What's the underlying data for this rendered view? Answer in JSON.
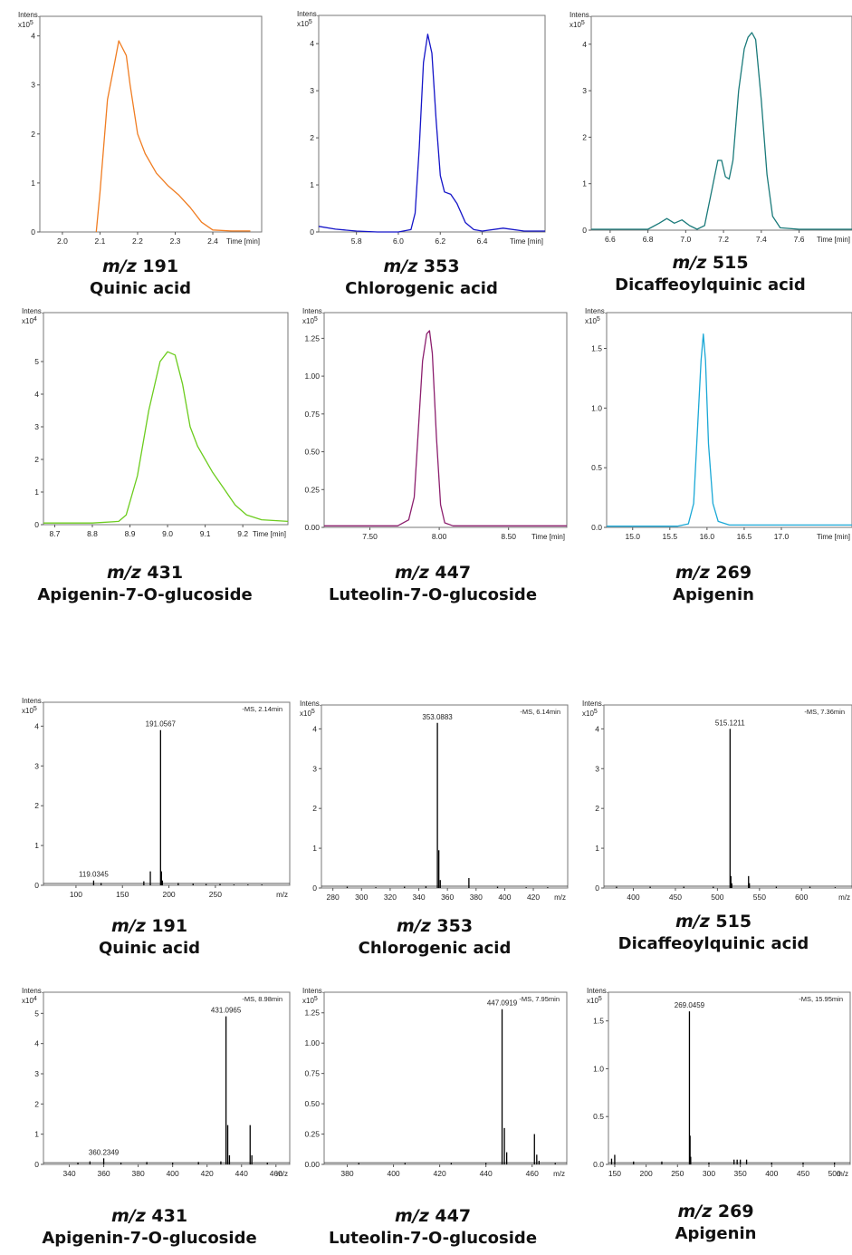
{
  "chart_data": [
    {
      "type": "line",
      "group": "chromatogram",
      "title_prefix": "m/z",
      "title": "191",
      "compound": "Quinic acid",
      "intens_label": "Intens.",
      "exponent_label": "x10",
      "exponent": "5",
      "xlabel": "Time [min]",
      "color": "#f07d22",
      "xlim": [
        1.94,
        2.53
      ],
      "ylim": [
        0,
        4.4
      ],
      "xticks": [
        {
          "v": 2.0,
          "l": "2.0"
        },
        {
          "v": 2.1,
          "l": "2.1"
        },
        {
          "v": 2.2,
          "l": "2.2"
        },
        {
          "v": 2.3,
          "l": "2.3"
        },
        {
          "v": 2.4,
          "l": "2.4"
        }
      ],
      "yticks": [
        {
          "v": 0,
          "l": "0"
        },
        {
          "v": 1,
          "l": "1"
        },
        {
          "v": 2,
          "l": "2"
        },
        {
          "v": 3,
          "l": "3"
        },
        {
          "v": 4,
          "l": "4"
        }
      ],
      "x": [
        2.09,
        2.1,
        2.12,
        2.14,
        2.15,
        2.17,
        2.18,
        2.2,
        2.22,
        2.25,
        2.28,
        2.31,
        2.34,
        2.37,
        2.4,
        2.45,
        2.5
      ],
      "y": [
        0,
        0.8,
        2.7,
        3.5,
        3.9,
        3.6,
        3.0,
        2.0,
        1.6,
        1.2,
        0.95,
        0.75,
        0.5,
        0.2,
        0.04,
        0.02,
        0.02
      ]
    },
    {
      "type": "line",
      "group": "chromatogram",
      "title_prefix": "m/z",
      "title": "353",
      "compound": "Chlorogenic acid",
      "intens_label": "Intens.",
      "exponent_label": "x10",
      "exponent": "5",
      "xlabel": "Time [min]",
      "color": "#1515c8",
      "xlim": [
        5.62,
        6.7
      ],
      "ylim": [
        0,
        4.6
      ],
      "xticks": [
        {
          "v": 5.8,
          "l": "5.8"
        },
        {
          "v": 6.0,
          "l": "6.0"
        },
        {
          "v": 6.2,
          "l": "6.2"
        },
        {
          "v": 6.4,
          "l": "6.4"
        }
      ],
      "yticks": [
        {
          "v": 0,
          "l": "0"
        },
        {
          "v": 1,
          "l": "1"
        },
        {
          "v": 2,
          "l": "2"
        },
        {
          "v": 3,
          "l": "3"
        },
        {
          "v": 4,
          "l": "4"
        }
      ],
      "x": [
        5.62,
        5.7,
        5.8,
        5.9,
        6.0,
        6.06,
        6.08,
        6.1,
        6.12,
        6.14,
        6.16,
        6.18,
        6.2,
        6.22,
        6.25,
        6.28,
        6.32,
        6.36,
        6.4,
        6.5,
        6.6,
        6.7
      ],
      "y": [
        0.12,
        0.06,
        0.02,
        0,
        0,
        0.05,
        0.4,
        1.8,
        3.6,
        4.2,
        3.8,
        2.4,
        1.2,
        0.85,
        0.8,
        0.6,
        0.2,
        0.05,
        0.02,
        0.08,
        0.02,
        0.02
      ]
    },
    {
      "type": "line",
      "group": "chromatogram",
      "title_prefix": "m/z",
      "title": "515",
      "compound": "Dicaffeoylquinic acid",
      "intens_label": "Intens.",
      "exponent_label": "x10",
      "exponent": "5",
      "xlabel": "Time [min]",
      "color": "#1a7a7a",
      "xlim": [
        6.5,
        7.88
      ],
      "ylim": [
        0,
        4.6
      ],
      "xticks": [
        {
          "v": 6.6,
          "l": "6.6"
        },
        {
          "v": 6.8,
          "l": "6.8"
        },
        {
          "v": 7.0,
          "l": "7.0"
        },
        {
          "v": 7.2,
          "l": "7.2"
        },
        {
          "v": 7.4,
          "l": "7.4"
        },
        {
          "v": 7.6,
          "l": "7.6"
        }
      ],
      "yticks": [
        {
          "v": 0,
          "l": "0"
        },
        {
          "v": 1,
          "l": "1"
        },
        {
          "v": 2,
          "l": "2"
        },
        {
          "v": 3,
          "l": "3"
        },
        {
          "v": 4,
          "l": "4"
        }
      ],
      "x": [
        6.5,
        6.8,
        6.86,
        6.9,
        6.94,
        6.98,
        7.02,
        7.06,
        7.1,
        7.14,
        7.17,
        7.19,
        7.21,
        7.23,
        7.25,
        7.28,
        7.31,
        7.33,
        7.35,
        7.37,
        7.4,
        7.43,
        7.46,
        7.5,
        7.6,
        7.88
      ],
      "y": [
        0.02,
        0.02,
        0.15,
        0.25,
        0.15,
        0.22,
        0.1,
        0.02,
        0.1,
        0.9,
        1.5,
        1.5,
        1.15,
        1.1,
        1.5,
        3.0,
        3.9,
        4.15,
        4.25,
        4.1,
        2.8,
        1.2,
        0.3,
        0.05,
        0.02,
        0.02
      ]
    },
    {
      "type": "line",
      "group": "chromatogram",
      "title_prefix": "m/z",
      "title": "431",
      "compound": "Apigenin-7-O-glucoside",
      "intens_label": "Intens.",
      "exponent_label": "x10",
      "exponent": "4",
      "xlabel": "Time [min]",
      "color": "#6ccc1e",
      "xlim": [
        8.67,
        9.32
      ],
      "ylim": [
        0,
        6.5
      ],
      "xticks": [
        {
          "v": 8.7,
          "l": "8.7"
        },
        {
          "v": 8.8,
          "l": "8.8"
        },
        {
          "v": 8.9,
          "l": "8.9"
        },
        {
          "v": 9.0,
          "l": "9.0"
        },
        {
          "v": 9.1,
          "l": "9.1"
        },
        {
          "v": 9.2,
          "l": "9.2"
        }
      ],
      "yticks": [
        {
          "v": 0,
          "l": "0"
        },
        {
          "v": 1,
          "l": "1"
        },
        {
          "v": 2,
          "l": "2"
        },
        {
          "v": 3,
          "l": "3"
        },
        {
          "v": 4,
          "l": "4"
        },
        {
          "v": 5,
          "l": "5"
        }
      ],
      "x": [
        8.67,
        8.8,
        8.87,
        8.89,
        8.92,
        8.95,
        8.98,
        9.0,
        9.02,
        9.04,
        9.06,
        9.08,
        9.1,
        9.12,
        9.15,
        9.18,
        9.21,
        9.25,
        9.32
      ],
      "y": [
        0.05,
        0.05,
        0.1,
        0.3,
        1.5,
        3.5,
        5.0,
        5.3,
        5.2,
        4.3,
        3.0,
        2.4,
        2.0,
        1.6,
        1.1,
        0.6,
        0.3,
        0.15,
        0.1
      ]
    },
    {
      "type": "line",
      "group": "chromatogram",
      "title_prefix": "m/z",
      "title": "447",
      "compound": "Luteolin-7-O-glucoside",
      "intens_label": "Intens.",
      "exponent_label": "x10",
      "exponent": "5",
      "xlabel": "Time [min]",
      "color": "#8c1f6e",
      "xlim": [
        7.17,
        8.92
      ],
      "ylim": [
        0,
        1.42
      ],
      "xticks": [
        {
          "v": 7.5,
          "l": "7.50"
        },
        {
          "v": 8.0,
          "l": "8.00"
        },
        {
          "v": 8.5,
          "l": "8.50"
        }
      ],
      "yticks": [
        {
          "v": 0,
          "l": "0.00"
        },
        {
          "v": 0.25,
          "l": "0.25"
        },
        {
          "v": 0.5,
          "l": "0.50"
        },
        {
          "v": 0.75,
          "l": "0.75"
        },
        {
          "v": 1.0,
          "l": "1.00"
        },
        {
          "v": 1.25,
          "l": "1.25"
        }
      ],
      "x": [
        7.17,
        7.7,
        7.78,
        7.82,
        7.85,
        7.88,
        7.91,
        7.93,
        7.95,
        7.98,
        8.01,
        8.04,
        8.1,
        8.3,
        8.92
      ],
      "y": [
        0.01,
        0.01,
        0.05,
        0.2,
        0.65,
        1.1,
        1.28,
        1.3,
        1.15,
        0.6,
        0.15,
        0.03,
        0.01,
        0.01,
        0.01
      ]
    },
    {
      "type": "line",
      "group": "chromatogram",
      "title_prefix": "m/z",
      "title": "269",
      "compound": "Apigenin",
      "intens_label": "Intens.",
      "exponent_label": "x10",
      "exponent": "5",
      "xlabel": "Time [min]",
      "color": "#1aa8d6",
      "xlim": [
        14.65,
        17.95
      ],
      "ylim": [
        0,
        1.8
      ],
      "xticks": [
        {
          "v": 15.0,
          "l": "15.0"
        },
        {
          "v": 15.5,
          "l": "15.5"
        },
        {
          "v": 16.0,
          "l": "16.0"
        },
        {
          "v": 16.5,
          "l": "16.5"
        },
        {
          "v": 17.0,
          "l": "17.0"
        }
      ],
      "yticks": [
        {
          "v": 0,
          "l": "0.0"
        },
        {
          "v": 0.5,
          "l": "0.5"
        },
        {
          "v": 1.0,
          "l": "1.0"
        },
        {
          "v": 1.5,
          "l": "1.5"
        }
      ],
      "x": [
        14.65,
        15.6,
        15.75,
        15.82,
        15.87,
        15.92,
        15.95,
        15.98,
        16.02,
        16.08,
        16.15,
        16.3,
        16.6,
        17.95
      ],
      "y": [
        0.01,
        0.01,
        0.03,
        0.2,
        0.8,
        1.4,
        1.62,
        1.4,
        0.7,
        0.2,
        0.05,
        0.02,
        0.02,
        0.02
      ]
    },
    {
      "type": "bar",
      "group": "spectrum",
      "title_prefix": "m/z",
      "title": "191",
      "compound": "Quinic acid",
      "intens_label": "Intens.",
      "exponent_label": "x10",
      "exponent": "5",
      "xlabel": "m/z",
      "header": "-MS, 2.14min",
      "color": "#000000",
      "xlim": [
        65,
        330
      ],
      "ylim": [
        0,
        4.6
      ],
      "xticks": [
        {
          "v": 100,
          "l": "100"
        },
        {
          "v": 150,
          "l": "150"
        },
        {
          "v": 200,
          "l": "200"
        },
        {
          "v": 250,
          "l": "250"
        }
      ],
      "yticks": [
        {
          "v": 0,
          "l": "0"
        },
        {
          "v": 1,
          "l": "1"
        },
        {
          "v": 2,
          "l": "2"
        },
        {
          "v": 3,
          "l": "3"
        },
        {
          "v": 4,
          "l": "4"
        }
      ],
      "x": [
        119,
        127,
        173,
        180,
        191,
        192,
        193,
        210,
        226,
        240,
        255,
        270,
        285,
        300
      ],
      "y": [
        0.12,
        0.06,
        0.1,
        0.35,
        3.9,
        0.35,
        0.12,
        0.06,
        0.04,
        0.03,
        0.03,
        0.02,
        0.02,
        0.02
      ],
      "peak_labels": [
        {
          "x": 191,
          "y": 3.9,
          "text": "191.0567"
        },
        {
          "x": 119,
          "y": 0.12,
          "text": "119.0345"
        }
      ]
    },
    {
      "type": "bar",
      "group": "spectrum",
      "title_prefix": "m/z",
      "title": "353",
      "compound": "Chlorogenic acid",
      "intens_label": "Intens.",
      "exponent_label": "x10",
      "exponent": "5",
      "xlabel": "m/z",
      "header": "-MS, 6.14min",
      "color": "#000000",
      "xlim": [
        272,
        444
      ],
      "ylim": [
        0,
        4.6
      ],
      "xticks": [
        {
          "v": 280,
          "l": "280"
        },
        {
          "v": 300,
          "l": "300"
        },
        {
          "v": 320,
          "l": "320"
        },
        {
          "v": 340,
          "l": "340"
        },
        {
          "v": 360,
          "l": "360"
        },
        {
          "v": 380,
          "l": "380"
        },
        {
          "v": 400,
          "l": "400"
        },
        {
          "v": 420,
          "l": "420"
        }
      ],
      "yticks": [
        {
          "v": 0,
          "l": "0"
        },
        {
          "v": 1,
          "l": "1"
        },
        {
          "v": 2,
          "l": "2"
        },
        {
          "v": 3,
          "l": "3"
        },
        {
          "v": 4,
          "l": "4"
        }
      ],
      "x": [
        290,
        310,
        330,
        345,
        353,
        354,
        355,
        375,
        395,
        415,
        430
      ],
      "y": [
        0.03,
        0.02,
        0.03,
        0.04,
        4.15,
        0.95,
        0.2,
        0.25,
        0.03,
        0.02,
        0.02
      ],
      "peak_labels": [
        {
          "x": 353,
          "y": 4.15,
          "text": "353.0883"
        }
      ]
    },
    {
      "type": "bar",
      "group": "spectrum",
      "title_prefix": "m/z",
      "title": "515",
      "compound": "Dicaffeoylquinic acid",
      "intens_label": "Intens.",
      "exponent_label": "x10",
      "exponent": "5",
      "xlabel": "m/z",
      "header": "-MS, 7.36min",
      "color": "#000000",
      "xlim": [
        365,
        660
      ],
      "ylim": [
        0,
        4.6
      ],
      "xticks": [
        {
          "v": 400,
          "l": "400"
        },
        {
          "v": 450,
          "l": "450"
        },
        {
          "v": 500,
          "l": "500"
        },
        {
          "v": 550,
          "l": "550"
        },
        {
          "v": 600,
          "l": "600"
        }
      ],
      "yticks": [
        {
          "v": 0,
          "l": "0"
        },
        {
          "v": 1,
          "l": "1"
        },
        {
          "v": 2,
          "l": "2"
        },
        {
          "v": 3,
          "l": "3"
        },
        {
          "v": 4,
          "l": "4"
        }
      ],
      "x": [
        380,
        420,
        460,
        495,
        515,
        516,
        517,
        537,
        538,
        570,
        610,
        640
      ],
      "y": [
        0.03,
        0.03,
        0.03,
        0.03,
        4.0,
        0.3,
        0.12,
        0.3,
        0.12,
        0.03,
        0.03,
        0.02
      ],
      "peak_labels": [
        {
          "x": 515,
          "y": 4.0,
          "text": "515.1211"
        }
      ]
    },
    {
      "type": "bar",
      "group": "spectrum",
      "title_prefix": "m/z",
      "title": "431",
      "compound": "Apigenin-7-O-glucoside",
      "intens_label": "Intens.",
      "exponent_label": "x10",
      "exponent": "4",
      "xlabel": "m/z",
      "header": "-MS, 8.98min",
      "color": "#000000",
      "xlim": [
        325,
        468
      ],
      "ylim": [
        0,
        5.7
      ],
      "xticks": [
        {
          "v": 340,
          "l": "340"
        },
        {
          "v": 360,
          "l": "360"
        },
        {
          "v": 380,
          "l": "380"
        },
        {
          "v": 400,
          "l": "400"
        },
        {
          "v": 420,
          "l": "420"
        },
        {
          "v": 440,
          "l": "440"
        },
        {
          "v": 460,
          "l": "460"
        }
      ],
      "yticks": [
        {
          "v": 0,
          "l": "0"
        },
        {
          "v": 1,
          "l": "1"
        },
        {
          "v": 2,
          "l": "2"
        },
        {
          "v": 3,
          "l": "3"
        },
        {
          "v": 4,
          "l": "4"
        },
        {
          "v": 5,
          "l": "5"
        }
      ],
      "x": [
        345,
        352,
        360,
        370,
        385,
        400,
        415,
        428,
        431,
        432,
        433,
        445,
        446,
        455
      ],
      "y": [
        0.05,
        0.1,
        0.2,
        0.05,
        0.08,
        0.06,
        0.08,
        0.1,
        4.9,
        1.3,
        0.3,
        1.3,
        0.3,
        0.05
      ],
      "peak_labels": [
        {
          "x": 431,
          "y": 4.9,
          "text": "431.0965"
        },
        {
          "x": 360,
          "y": 0.2,
          "text": "360.2349"
        }
      ]
    },
    {
      "type": "bar",
      "group": "spectrum",
      "title_prefix": "m/z",
      "title": "447",
      "compound": "Luteolin-7-O-glucoside",
      "intens_label": "Intens.",
      "exponent_label": "x10",
      "exponent": "5",
      "xlabel": "m/z",
      "header": "-MS, 7.95min",
      "color": "#000000",
      "xlim": [
        370,
        475
      ],
      "ylim": [
        0,
        1.42
      ],
      "xticks": [
        {
          "v": 380,
          "l": "380"
        },
        {
          "v": 400,
          "l": "400"
        },
        {
          "v": 420,
          "l": "420"
        },
        {
          "v": 440,
          "l": "440"
        },
        {
          "v": 460,
          "l": "460"
        }
      ],
      "yticks": [
        {
          "v": 0,
          "l": "0.00"
        },
        {
          "v": 0.25,
          "l": "0.25"
        },
        {
          "v": 0.5,
          "l": "0.50"
        },
        {
          "v": 0.75,
          "l": "0.75"
        },
        {
          "v": 1.0,
          "l": "1.00"
        },
        {
          "v": 1.25,
          "l": "1.25"
        }
      ],
      "x": [
        385,
        405,
        425,
        440,
        447,
        448,
        449,
        461,
        462,
        463,
        470
      ],
      "y": [
        0.01,
        0.01,
        0.01,
        0.01,
        1.28,
        0.3,
        0.1,
        0.25,
        0.08,
        0.03,
        0.01
      ],
      "peak_labels": [
        {
          "x": 447,
          "y": 1.28,
          "text": "447.0919"
        }
      ]
    },
    {
      "type": "bar",
      "group": "spectrum",
      "title_prefix": "m/z",
      "title": "269",
      "compound": "Apigenin",
      "intens_label": "Intens.",
      "exponent_label": "x10",
      "exponent": "5",
      "xlabel": "m/z",
      "header": "-MS, 15.95min",
      "color": "#000000",
      "xlim": [
        140,
        525
      ],
      "ylim": [
        0,
        1.8
      ],
      "xticks": [
        {
          "v": 150,
          "l": "150"
        },
        {
          "v": 200,
          "l": "200"
        },
        {
          "v": 250,
          "l": "250"
        },
        {
          "v": 300,
          "l": "300"
        },
        {
          "v": 350,
          "l": "350"
        },
        {
          "v": 400,
          "l": "400"
        },
        {
          "v": 450,
          "l": "450"
        },
        {
          "v": 500,
          "l": "500"
        }
      ],
      "yticks": [
        {
          "v": 0,
          "l": "0.0"
        },
        {
          "v": 0.5,
          "l": "0.5"
        },
        {
          "v": 1.0,
          "l": "1.0"
        },
        {
          "v": 1.5,
          "l": "1.5"
        }
      ],
      "x": [
        145,
        150,
        180,
        225,
        269,
        270,
        271,
        300,
        340,
        345,
        350,
        360,
        400,
        450,
        500
      ],
      "y": [
        0.06,
        0.1,
        0.03,
        0.03,
        1.6,
        0.3,
        0.08,
        0.02,
        0.05,
        0.05,
        0.05,
        0.05,
        0.02,
        0.02,
        0.02
      ],
      "peak_labels": [
        {
          "x": 269,
          "y": 1.6,
          "text": "269.0459"
        }
      ]
    }
  ]
}
